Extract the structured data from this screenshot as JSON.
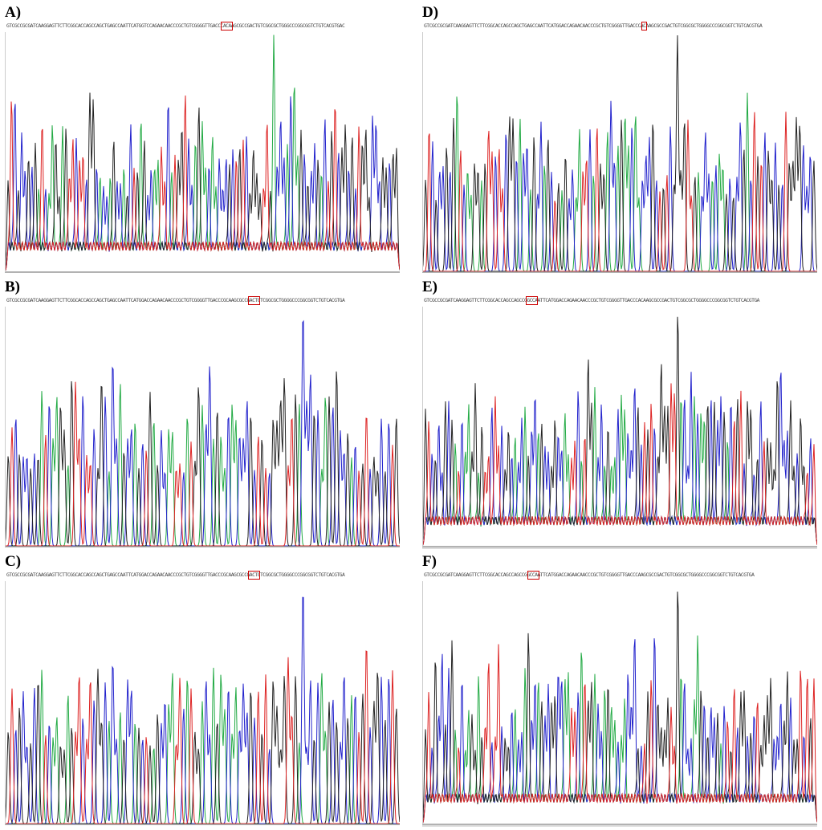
{
  "panels": [
    {
      "label": "A)",
      "sequence": "GTCGCCGCGATCAAGGAGTTCTTCGGCACCAGCCAGCTGAGCCAATTCATGGTCCAGAACAACCCGCTGTCGGGGTTGACCCACAAGCGCCGACTGTCGGCGCTGGGCCCGGCGGTCTGTCACGTGAC",
      "highlight": [
        70,
        74
      ],
      "seed": 11,
      "noisy": true,
      "footer": false,
      "peaks": 115,
      "tallest_index": 78
    },
    {
      "label": "B)",
      "sequence": "GTCGCCGCGATCAAGGAGTTCTTCGGCACCAGCCAGCTGAGCCAATTCATGGACCAGAACAACCCGCTGTCGGGGTTGACCCGCAAGCGCCGACTGTCGGCGCTGGGGCCCGGCGGTCTGTCACGTGA",
      "highlight": [
        79,
        83
      ],
      "seed": 23,
      "noisy": false,
      "footer": false,
      "peaks": 105,
      "tallest_index": 79
    },
    {
      "label": "C)",
      "sequence": "GTCGCCGCGATCAAGGAGTTCTTCGGCACCAGCCAGCTGAGCCAATTCATGGACCAGAACAACCCGCTGTCGGGGTTGACCCGCAAGCGCCGACTGTCGGCGCTGGGGCCCGGCGGTCTGTCACGTGA",
      "highlight": [
        79,
        83
      ],
      "seed": 37,
      "noisy": false,
      "footer": false,
      "peaks": 105,
      "tallest_index": 79
    },
    {
      "label": "D)",
      "sequence": "GTCGCCGCGATCAAGGAGTTCTTCGGCACCAGCCAGCTGAGCCAATTCATGGACCAGAACAACCCGCTGTCGGGGTTGACCCACAAGCGCCGACTGTCGGCGCTGGGGCCCGGCGGTCTGTCACGTGA",
      "highlight": [
        71,
        73
      ],
      "seed": 41,
      "noisy": false,
      "footer": false,
      "peaks": 112,
      "tallest_index": 72
    },
    {
      "label": "E)",
      "sequence": "GTCGCCGCGATCAAGGAGTTCTTCGGCACCAGCCAGCCGGCCAATTCATGGACCAGAACAACCCGCTGTCGGGGTTGACCCACAAGCGCCGACTGTCGGCGCTGGGGCCCGGCGGTCTGTCACGTGA",
      "highlight": [
        33,
        37
      ],
      "seed": 53,
      "noisy": true,
      "footer": true,
      "peaks": 118,
      "tallest_index": 76
    },
    {
      "label": "F)",
      "sequence": "GTCGCCGCGATCAAGGAGTTCTTCGGCACCAGCCAGCCGGCCAATTCATGGACCAGAACAACCCGCTGTCGGGGTTGACCCAAGCGCCGACTGTCGGCGCTGGGGCCCGGCGGTCTGTCACGTGA",
      "highlight": [
        33,
        37
      ],
      "seed": 67,
      "noisy": true,
      "footer": true,
      "peaks": 118,
      "tallest_index": 76
    }
  ],
  "colors": {
    "A": "#22aa44",
    "C": "#2222cc",
    "G": "#222222",
    "T": "#dd2222",
    "axis": "#999999",
    "highlight_box": "#cc0000"
  },
  "chart_data": [
    {
      "type": "line",
      "title": "A)",
      "xlabel": "",
      "ylabel": "",
      "grid": false,
      "series": [
        {
          "name": "A",
          "color": "#22aa44"
        },
        {
          "name": "C",
          "color": "#2222cc"
        },
        {
          "name": "G",
          "color": "#222222"
        },
        {
          "name": "T",
          "color": "#dd2222"
        }
      ]
    },
    {
      "type": "line",
      "title": "B)",
      "xlabel": "",
      "ylabel": "",
      "grid": false,
      "series": [
        {
          "name": "A",
          "color": "#22aa44"
        },
        {
          "name": "C",
          "color": "#2222cc"
        },
        {
          "name": "G",
          "color": "#222222"
        },
        {
          "name": "T",
          "color": "#dd2222"
        }
      ]
    },
    {
      "type": "line",
      "title": "C)",
      "xlabel": "",
      "ylabel": "",
      "grid": false,
      "series": [
        {
          "name": "A",
          "color": "#22aa44"
        },
        {
          "name": "C",
          "color": "#2222cc"
        },
        {
          "name": "G",
          "color": "#222222"
        },
        {
          "name": "T",
          "color": "#dd2222"
        }
      ]
    },
    {
      "type": "line",
      "title": "D)",
      "xlabel": "",
      "ylabel": "",
      "grid": false,
      "series": [
        {
          "name": "A",
          "color": "#22aa44"
        },
        {
          "name": "C",
          "color": "#2222cc"
        },
        {
          "name": "G",
          "color": "#222222"
        },
        {
          "name": "T",
          "color": "#dd2222"
        }
      ]
    },
    {
      "type": "line",
      "title": "E)",
      "xlabel": "",
      "ylabel": "",
      "grid": false,
      "series": [
        {
          "name": "A",
          "color": "#22aa44"
        },
        {
          "name": "C",
          "color": "#2222cc"
        },
        {
          "name": "G",
          "color": "#222222"
        },
        {
          "name": "T",
          "color": "#dd2222"
        }
      ]
    },
    {
      "type": "line",
      "title": "F)",
      "xlabel": "",
      "ylabel": "",
      "grid": false,
      "series": [
        {
          "name": "A",
          "color": "#22aa44"
        },
        {
          "name": "C",
          "color": "#2222cc"
        },
        {
          "name": "G",
          "color": "#222222"
        },
        {
          "name": "T",
          "color": "#dd2222"
        }
      ]
    }
  ]
}
